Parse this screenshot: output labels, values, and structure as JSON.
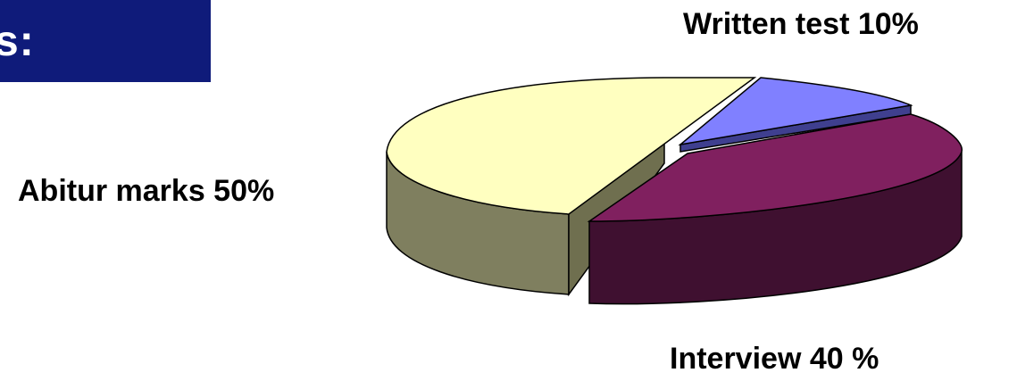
{
  "header": {
    "text": "s:",
    "color": "#0f1b7a"
  },
  "chart_data": {
    "type": "pie",
    "title": "",
    "slices": [
      {
        "label": "Abitur marks 50%",
        "value": 50,
        "color": "#ffffc0",
        "side_color": "#7f7f5f"
      },
      {
        "label": "Written test 10%",
        "value": 10,
        "color": "#8080ff",
        "side_color": "#3f3f8f"
      },
      {
        "label": "Interview 40 %",
        "value": 40,
        "color": "#80205f",
        "side_color": "#3f1030"
      }
    ],
    "style": "3d-exploded"
  }
}
